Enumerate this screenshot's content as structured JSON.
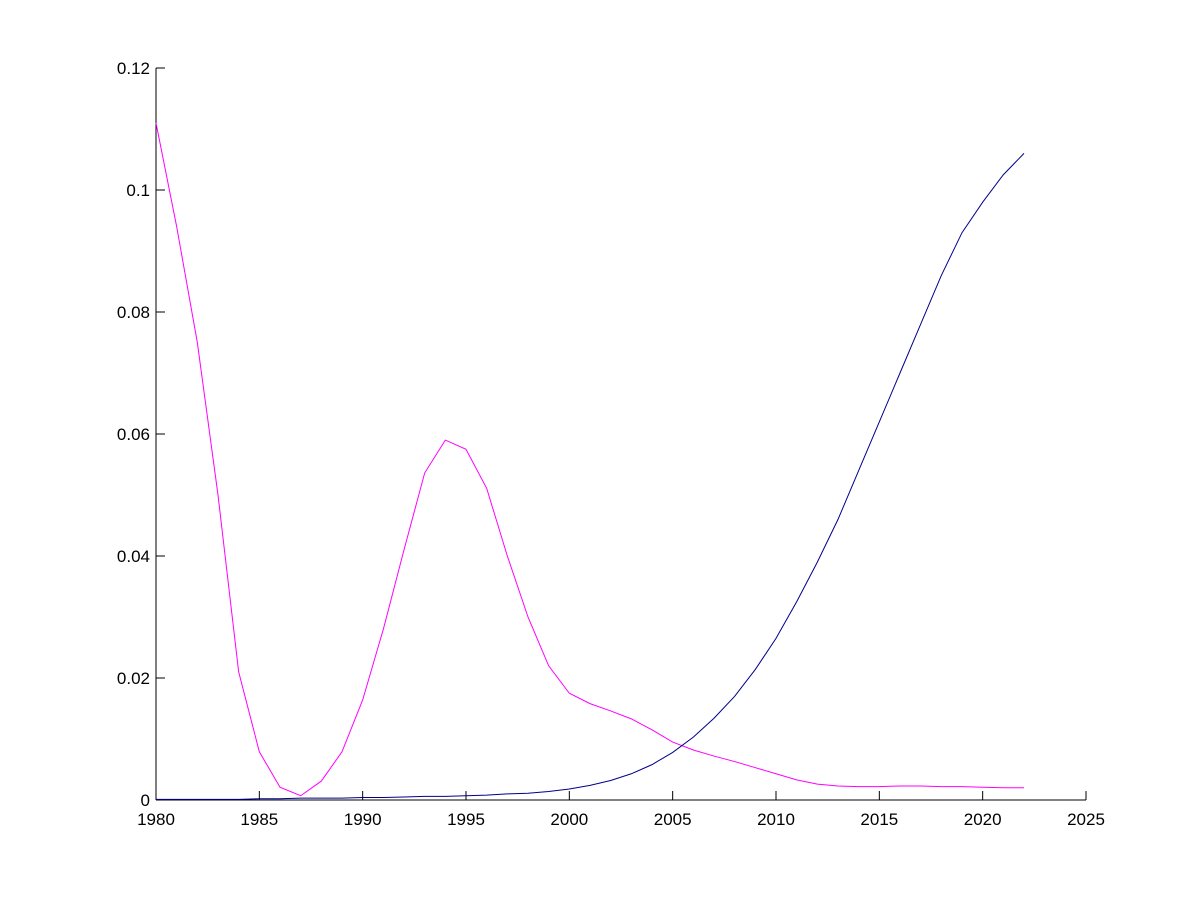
{
  "chart_data": {
    "type": "line",
    "x": [
      1980,
      1981,
      1982,
      1983,
      1984,
      1985,
      1986,
      1987,
      1988,
      1989,
      1990,
      1991,
      1992,
      1993,
      1994,
      1995,
      1996,
      1997,
      1998,
      1999,
      2000,
      2001,
      2002,
      2003,
      2004,
      2005,
      2006,
      2007,
      2008,
      2009,
      2010,
      2011,
      2012,
      2013,
      2014,
      2015,
      2016,
      2017,
      2018,
      2019,
      2020,
      2021,
      2022
    ],
    "series": [
      {
        "color": "#ff00ff",
        "values": [
          0.111,
          0.094,
          0.075,
          0.05,
          0.021,
          0.0079,
          0.0021,
          0.0007,
          0.0031,
          0.0079,
          0.0164,
          0.028,
          0.041,
          0.0536,
          0.059,
          0.0575,
          0.0511,
          0.04,
          0.03,
          0.022,
          0.0175,
          0.0158,
          0.0146,
          0.0133,
          0.0115,
          0.0095,
          0.0082,
          0.0072,
          0.0063,
          0.0053,
          0.0043,
          0.0033,
          0.0026,
          0.0023,
          0.0022,
          0.0022,
          0.0023,
          0.0023,
          0.0022,
          0.0022,
          0.0021,
          0.002,
          0.002
        ]
      },
      {
        "color": "#00008b",
        "values": [
          0.0001,
          0.0001,
          0.0001,
          0.0001,
          0.0001,
          0.0002,
          0.0002,
          0.0003,
          0.0003,
          0.0003,
          0.0004,
          0.0004,
          0.0005,
          0.0006,
          0.0006,
          0.0007,
          0.0008,
          0.001,
          0.0011,
          0.0014,
          0.0018,
          0.0024,
          0.0032,
          0.0043,
          0.0058,
          0.0078,
          0.0103,
          0.0134,
          0.017,
          0.0214,
          0.0265,
          0.0325,
          0.039,
          0.046,
          0.054,
          0.062,
          0.07,
          0.078,
          0.086,
          0.093,
          0.098,
          0.1025,
          0.106
        ]
      }
    ],
    "xlim": [
      1980,
      2025
    ],
    "xticks": [
      1980,
      1985,
      1990,
      1995,
      2000,
      2005,
      2010,
      2015,
      2020,
      2025
    ],
    "ylim": [
      0,
      0.12
    ],
    "yticks": [
      0,
      0.02,
      0.04,
      0.06,
      0.08,
      0.1,
      0.12
    ]
  }
}
